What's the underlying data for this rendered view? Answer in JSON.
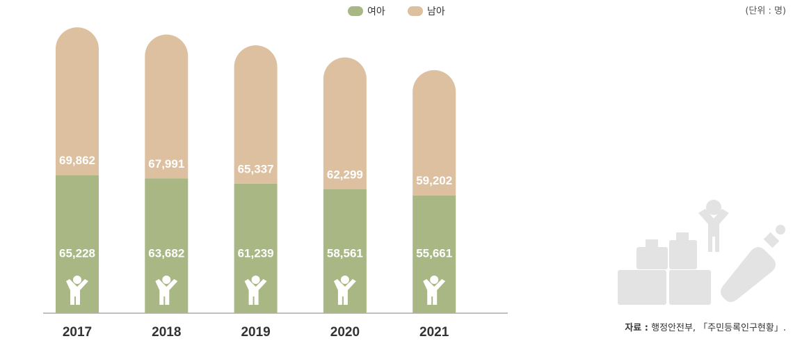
{
  "chart_data": {
    "type": "stacked_bar",
    "unit": "(단위 : 명)",
    "source_label": "자료 :",
    "source": "행정안전부, 「주민등록인구현황」.",
    "categories": [
      "2017",
      "2018",
      "2019",
      "2020",
      "2021"
    ],
    "ylim": [
      0,
      148000
    ],
    "series": [
      {
        "name": "여아",
        "color": "#a9b784",
        "values": [
          65228,
          63682,
          61239,
          58561,
          55661
        ],
        "value_labels": [
          "65,228",
          "63,682",
          "61,239",
          "58,561",
          "55,661"
        ]
      },
      {
        "name": "남아",
        "color": "#dcc0a0",
        "values": [
          69862,
          67991,
          65337,
          62299,
          59202
        ],
        "value_labels": [
          "69,862",
          "67,991",
          "65,337",
          "62,299",
          "59,202"
        ]
      }
    ]
  }
}
